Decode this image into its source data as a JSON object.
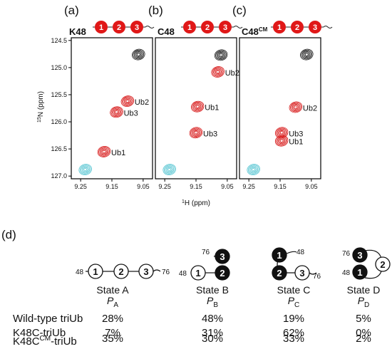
{
  "panels": [
    {
      "letter": "(a)",
      "title": "K48",
      "title_sup": "",
      "chain": [
        "1",
        "2",
        "3"
      ],
      "peaks": [
        {
          "label": "Ub2",
          "h": 9.1,
          "n": 125.62,
          "color": "red"
        },
        {
          "label": "Ub3",
          "h": 9.135,
          "n": 125.82,
          "color": "red"
        },
        {
          "label": "Ub1",
          "h": 9.175,
          "n": 126.55,
          "color": "red"
        },
        {
          "label": "",
          "h": 9.065,
          "n": 124.76,
          "color": "black"
        },
        {
          "label": "",
          "h": 9.235,
          "n": 126.88,
          "color": "cyan"
        }
      ]
    },
    {
      "letter": "(b)",
      "title": "C48",
      "title_sup": "",
      "chain": [
        "1",
        "2",
        "3"
      ],
      "peaks": [
        {
          "label": "Ub2",
          "h": 9.08,
          "n": 125.08,
          "color": "red"
        },
        {
          "label": "Ub1",
          "h": 9.145,
          "n": 125.72,
          "color": "red"
        },
        {
          "label": "Ub3",
          "h": 9.15,
          "n": 126.2,
          "color": "red"
        },
        {
          "label": "",
          "h": 9.07,
          "n": 124.77,
          "color": "black"
        },
        {
          "label": "",
          "h": 9.235,
          "n": 126.88,
          "color": "cyan"
        }
      ]
    },
    {
      "letter": "(c)",
      "title": "C48",
      "title_sup": "CM",
      "chain": [
        "1",
        "2",
        "3"
      ],
      "peaks": [
        {
          "label": "Ub2",
          "h": 9.1,
          "n": 125.73,
          "color": "red"
        },
        {
          "label": "Ub3",
          "h": 9.145,
          "n": 126.2,
          "color": "red"
        },
        {
          "label": "Ub1",
          "h": 9.145,
          "n": 126.35,
          "color": "red"
        },
        {
          "label": "",
          "h": 9.065,
          "n": 124.76,
          "color": "black"
        },
        {
          "label": "",
          "h": 9.235,
          "n": 126.88,
          "color": "cyan"
        }
      ]
    }
  ],
  "axes": {
    "x_ticks": [
      "9.25",
      "9.15",
      "9.05"
    ],
    "y_ticks": [
      "124.5",
      "125.0",
      "125.5",
      "126.0",
      "126.5",
      "127.0"
    ],
    "x_label_sup": "1",
    "x_label": "H (ppm)",
    "y_label_sup": "15",
    "y_label": "N (ppm)",
    "xlim": [
      9.28,
      9.02
    ],
    "ylim": [
      124.45,
      127.05
    ]
  },
  "section_d": {
    "letter": "(d)",
    "states": [
      {
        "name": "State A",
        "p_main": "P",
        "p_sub": "A"
      },
      {
        "name": "State B",
        "p_main": "P",
        "p_sub": "B"
      },
      {
        "name": "State C",
        "p_main": "P",
        "p_sub": "C"
      },
      {
        "name": "State D",
        "p_main": "P",
        "p_sub": "D"
      }
    ],
    "diagram_labels": {
      "a_left": "48",
      "a_right": "76",
      "b_top": "76",
      "b_left": "48",
      "c_top": "48",
      "c_right": "76",
      "d_top": "76",
      "d_left": "48",
      "n1": "1",
      "n2": "2",
      "n3": "3"
    },
    "rows": [
      {
        "name": "Wild-type triUb",
        "name_sup": "",
        "name_after": "",
        "values": [
          "28%",
          "48%",
          "19%",
          "5%"
        ]
      },
      {
        "name": "K48C-triUb",
        "name_sup": "",
        "name_after": "",
        "values": [
          "7%",
          "31%",
          "62%",
          "0%"
        ]
      },
      {
        "name": "K48C",
        "name_sup": "CM",
        "name_after": "-triUb",
        "values": [
          "35%",
          "30%",
          "33%",
          "2%"
        ]
      }
    ]
  },
  "colors": {
    "red": "#d81c1c",
    "cyan": "#5ec8d4",
    "black": "#222222",
    "ball": "#e01818"
  }
}
